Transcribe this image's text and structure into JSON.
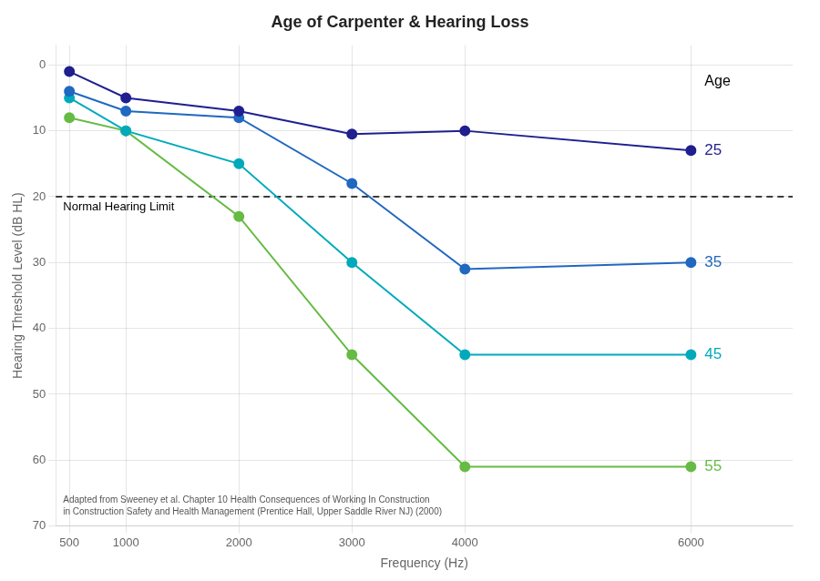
{
  "chart_data": {
    "type": "line",
    "title": "Age of Carpenter & Hearing Loss",
    "x_label": "Frequency (Hz)",
    "y_label": "Hearing Threshold Level (dB HL)",
    "x": [
      500,
      1000,
      2000,
      3000,
      4000,
      6000
    ],
    "series": [
      {
        "name": "25",
        "color": "#1f1f8f",
        "values": [
          1,
          5,
          7,
          10.5,
          10,
          13
        ]
      },
      {
        "name": "35",
        "color": "#2068c0",
        "values": [
          4,
          7,
          8,
          18,
          31,
          30
        ]
      },
      {
        "name": "45",
        "color": "#00aabb",
        "values": [
          5,
          10,
          15,
          30,
          44,
          44
        ]
      },
      {
        "name": "55",
        "color": "#66bb44",
        "values": [
          8,
          10,
          23,
          44,
          61,
          61
        ]
      }
    ],
    "marker": "circle",
    "line_style": "solid",
    "legend": "right",
    "legend_title": "Age",
    "reference_line": {
      "value": 20,
      "label": "Normal Hearing Limit",
      "color": "#000000",
      "line_style": "dashed"
    },
    "annotation": "Adapted from Sweeney et al. Chapter 10 Health Consequences of Working In Construction\nin Construction Safety and Health Management (Prentice Hall, Upper Saddle River NJ) (2000)",
    "xlim": [
      380,
      6900
    ],
    "ylim": [
      70,
      -3
    ],
    "xticks": [
      500,
      1000,
      2000,
      3000,
      4000,
      6000
    ],
    "yticks": [
      0,
      10,
      20,
      30,
      40,
      50,
      60,
      70
    ],
    "grid": true
  }
}
